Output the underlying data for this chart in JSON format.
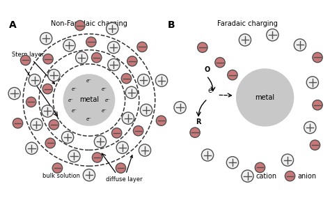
{
  "title_A": "Non-Faradaic charging",
  "title_B": "Faradaic charging",
  "label_A": "A",
  "label_B": "B",
  "metal_color": "#c8c8c8",
  "cation_fill": "#f0f0f0",
  "cation_edge": "#505050",
  "anion_fill": "#c87878",
  "anion_edge": "#505050",
  "bg_color": "#ffffff",
  "text_color": "#000000",
  "dashed_color": "#303030",
  "arrow_color": "#000000",
  "legend_cation": "cation",
  "legend_anion": "anion",
  "stern_label": "Stern layer",
  "bulk_label": "bulk solution",
  "diffuse_label": "diffuse layer",
  "metal_label": "metal",
  "O_label": "O",
  "R_label": "R",
  "eminus_label": "e⁻"
}
